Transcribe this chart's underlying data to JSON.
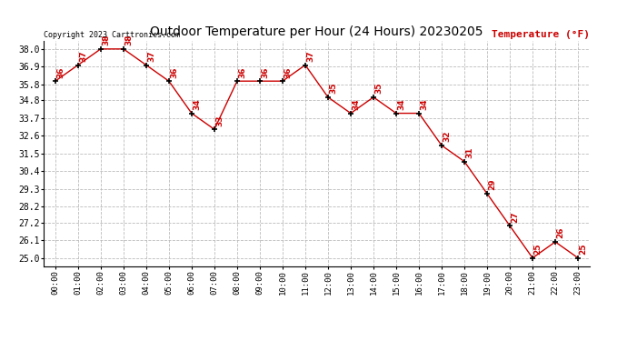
{
  "title": "Outdoor Temperature per Hour (24 Hours) 20230205",
  "ylabel": "Temperature (°F)",
  "copyright": "Copyright 2023 Carttronics.com",
  "hours": [
    "00:00",
    "01:00",
    "02:00",
    "03:00",
    "04:00",
    "05:00",
    "06:00",
    "07:00",
    "08:00",
    "09:00",
    "10:00",
    "11:00",
    "12:00",
    "13:00",
    "14:00",
    "15:00",
    "16:00",
    "17:00",
    "18:00",
    "19:00",
    "20:00",
    "21:00",
    "22:00",
    "23:00"
  ],
  "temps": [
    36,
    37,
    38,
    38,
    37,
    36,
    34,
    33,
    36,
    36,
    36,
    37,
    35,
    34,
    35,
    34,
    34,
    32,
    31,
    29,
    27,
    25,
    26,
    25
  ],
  "ylim_min": 24.5,
  "ylim_max": 38.5,
  "yticks": [
    25.0,
    26.1,
    27.2,
    28.2,
    29.3,
    30.4,
    31.5,
    32.6,
    33.7,
    34.8,
    35.8,
    36.9,
    38.0
  ],
  "line_color": "#cc0000",
  "marker_color": "#000000",
  "label_color": "#cc0000",
  "bg_color": "#ffffff",
  "grid_color": "#bbbbbb",
  "title_color": "#000000",
  "copyright_color": "#000000",
  "ylabel_color": "#cc0000"
}
